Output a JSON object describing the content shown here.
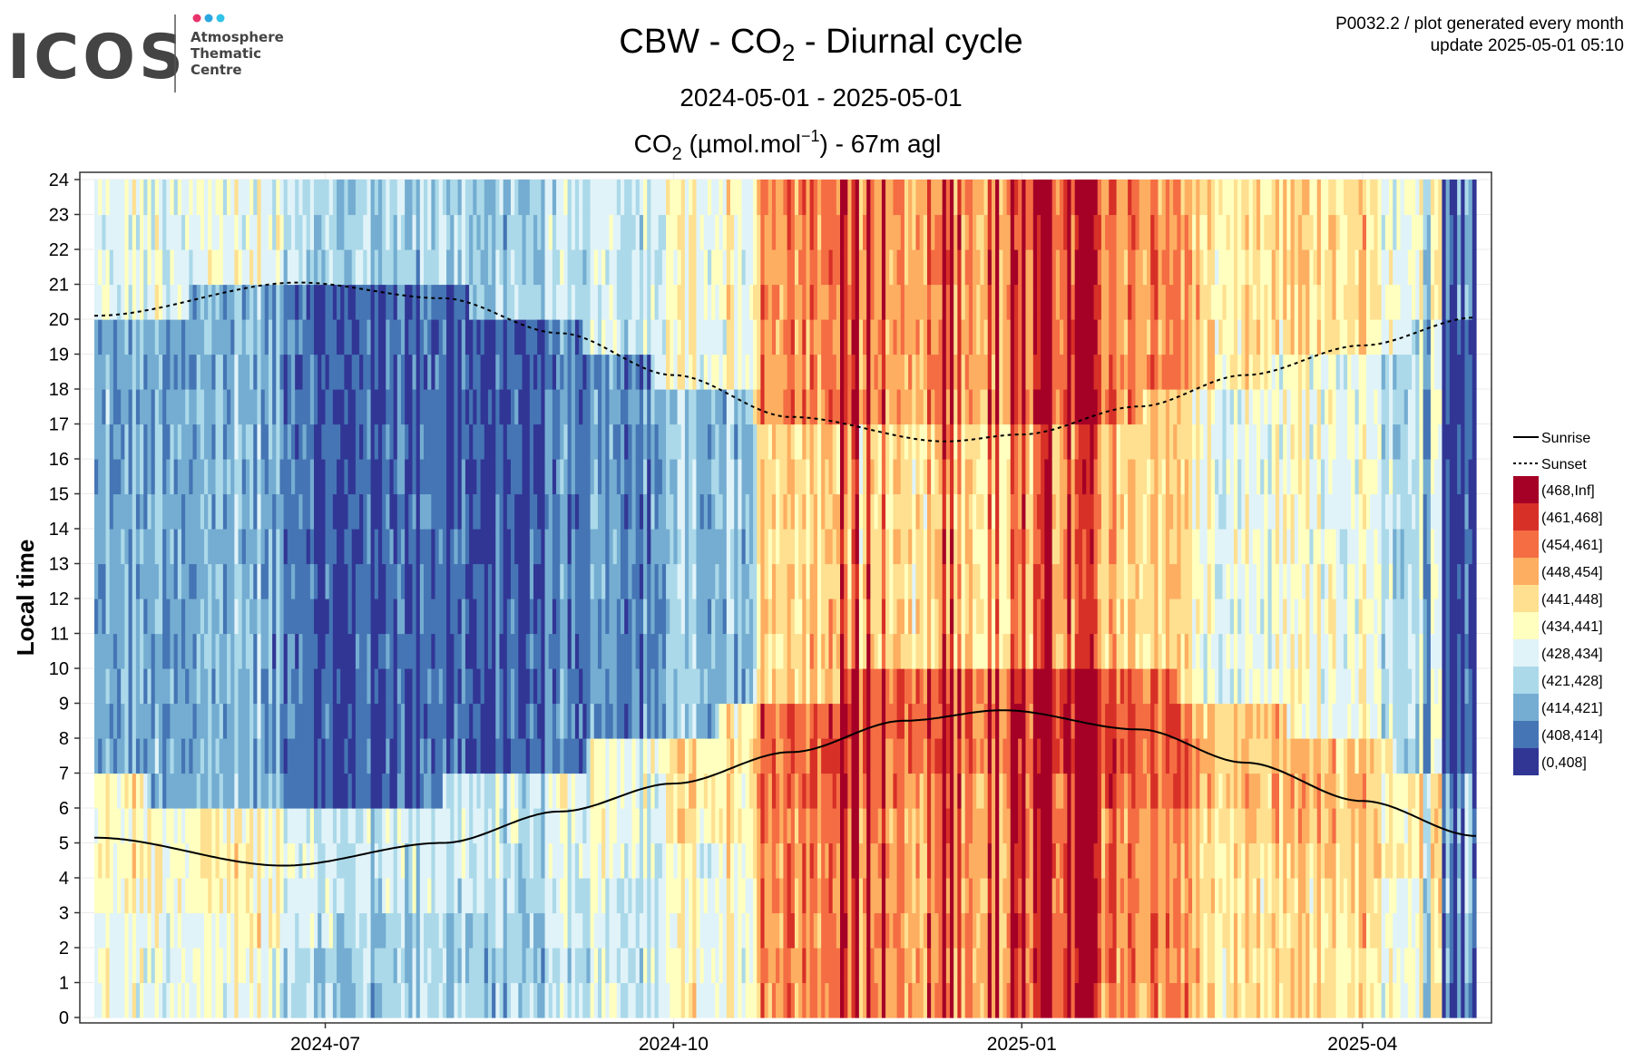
{
  "header": {
    "logo_text": "ICOS",
    "logo_sub": [
      "Atmosphere",
      "Thematic",
      "Centre"
    ],
    "meta_line1": "P0032.2 / plot generated every month",
    "meta_line2": "update  2025-05-01 05:10"
  },
  "chart_data": {
    "type": "heatmap",
    "title": {
      "prefix": "CBW - CO",
      "sub": "2",
      "suffix": " - Diurnal cycle"
    },
    "date_range_text": "2024-05-01 - 2025-05-01",
    "subtitle": {
      "prefix": "CO",
      "sub": "2",
      "mid": " (µmol.mol",
      "sup": "−1",
      "suffix": ") - 67m agl"
    },
    "ylabel": "Local time",
    "x_range": [
      "2024-05-01",
      "2025-05-01"
    ],
    "x_ticks": [
      {
        "date": "2024-07-01",
        "label": "2024-07"
      },
      {
        "date": "2024-10-01",
        "label": "2024-10"
      },
      {
        "date": "2025-01-01",
        "label": "2025-01"
      },
      {
        "date": "2025-04-01",
        "label": "2025-04"
      }
    ],
    "ylim": [
      0,
      24
    ],
    "y_ticks": [
      0,
      1,
      2,
      3,
      4,
      5,
      6,
      7,
      8,
      9,
      10,
      11,
      12,
      13,
      14,
      15,
      16,
      17,
      18,
      19,
      20,
      21,
      22,
      23,
      24
    ],
    "grid": true,
    "legend_position": "right",
    "legend_lines": [
      {
        "label": "Sunrise",
        "style": "solid"
      },
      {
        "label": "Sunset",
        "style": "dashed"
      }
    ],
    "color_bins": [
      {
        "label": "(468,Inf]",
        "color": "#a50026"
      },
      {
        "label": "(461,468]",
        "color": "#d73027"
      },
      {
        "label": "(454,461]",
        "color": "#f46d43"
      },
      {
        "label": "(448,454]",
        "color": "#fdae61"
      },
      {
        "label": "(441,448]",
        "color": "#fee090"
      },
      {
        "label": "(434,441]",
        "color": "#ffffbf"
      },
      {
        "label": "(428,434]",
        "color": "#e0f3f8"
      },
      {
        "label": "(421,428]",
        "color": "#abd9e9"
      },
      {
        "label": "(414,421]",
        "color": "#74add1"
      },
      {
        "label": "(408,414]",
        "color": "#4575b4"
      },
      {
        "label": "(0,408]",
        "color": "#313695"
      }
    ],
    "sunrise": [
      {
        "date": "2024-05-01",
        "hour": 5.15
      },
      {
        "date": "2024-06-20",
        "hour": 4.35
      },
      {
        "date": "2024-08-01",
        "hour": 5.0
      },
      {
        "date": "2024-09-01",
        "hour": 5.9
      },
      {
        "date": "2024-10-01",
        "hour": 6.7
      },
      {
        "date": "2024-11-01",
        "hour": 7.6
      },
      {
        "date": "2024-12-01",
        "hour": 8.5
      },
      {
        "date": "2024-12-27",
        "hour": 8.8
      },
      {
        "date": "2025-02-01",
        "hour": 8.25
      },
      {
        "date": "2025-03-01",
        "hour": 7.3
      },
      {
        "date": "2025-04-01",
        "hour": 6.2
      },
      {
        "date": "2025-05-01",
        "hour": 5.2
      }
    ],
    "sunset": [
      {
        "date": "2024-05-01",
        "hour": 20.1
      },
      {
        "date": "2024-06-24",
        "hour": 21.05
      },
      {
        "date": "2024-08-01",
        "hour": 20.6
      },
      {
        "date": "2024-09-01",
        "hour": 19.6
      },
      {
        "date": "2024-10-01",
        "hour": 18.4
      },
      {
        "date": "2024-11-01",
        "hour": 17.2
      },
      {
        "date": "2024-12-12",
        "hour": 16.5
      },
      {
        "date": "2025-01-01",
        "hour": 16.7
      },
      {
        "date": "2025-02-01",
        "hour": 17.5
      },
      {
        "date": "2025-03-01",
        "hour": 18.4
      },
      {
        "date": "2025-04-01",
        "hour": 19.25
      },
      {
        "date": "2025-05-01",
        "hour": 20.05
      }
    ]
  },
  "colors": {
    "logo_grey": "#444444",
    "dot_pink": "#e8356d",
    "dot_blue": "#2aa7e0",
    "dot_cyan": "#32c3e8",
    "grid": "#ebebeb",
    "panel_border": "#333333"
  }
}
